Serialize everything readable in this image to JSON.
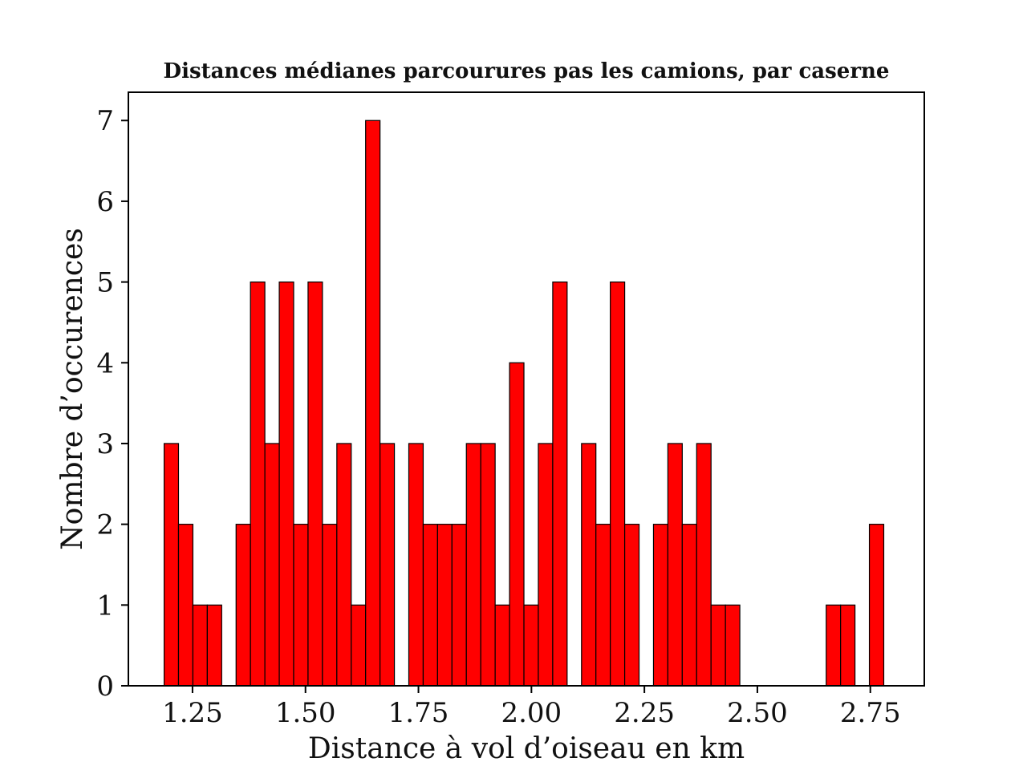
{
  "chart_data": {
    "type": "bar",
    "title": "Distances médianes parcourures pas les camions, par caserne",
    "xlabel": "Distance à vol d’oiseau en km",
    "ylabel": "Nombre d’occurences",
    "xlim": [
      1.1081,
      2.8694
    ],
    "ylim": [
      0,
      7.35
    ],
    "x_ticks": [
      1.25,
      1.5,
      1.75,
      2.0,
      2.25,
      2.5,
      2.75
    ],
    "x_tick_labels": [
      "1.25",
      "1.50",
      "1.75",
      "2.00",
      "2.25",
      "2.50",
      "2.75"
    ],
    "y_ticks": [
      0,
      1,
      2,
      3,
      4,
      5,
      6,
      7
    ],
    "y_tick_labels": [
      "0",
      "1",
      "2",
      "3",
      "4",
      "5",
      "6",
      "7"
    ],
    "bin_start": 1.1872,
    "bin_width": 0.03185,
    "values": [
      3,
      2,
      1,
      1,
      0,
      2,
      5,
      3,
      5,
      2,
      5,
      2,
      3,
      1,
      7,
      3,
      0,
      3,
      2,
      2,
      2,
      3,
      3,
      1,
      4,
      1,
      3,
      5,
      0,
      3,
      2,
      5,
      2,
      0,
      2,
      3,
      2,
      3,
      1,
      1,
      0,
      0,
      0,
      0,
      0,
      0,
      1,
      1,
      0,
      2
    ],
    "bar_color": "#ff0000",
    "edge_color": "#000000",
    "grid": false,
    "legend": "none"
  }
}
